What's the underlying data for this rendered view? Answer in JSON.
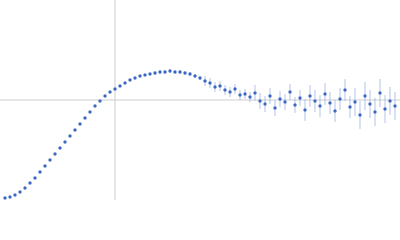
{
  "chart_data": {
    "type": "scatter",
    "color": "#3a66c4",
    "error_color": "#9fb5e2",
    "xlim": [
      0,
      400
    ],
    "ylim": [
      0,
      200
    ],
    "crosshair": {
      "x": 115,
      "y": 100
    },
    "x": [
      5,
      10,
      15,
      20,
      25,
      30,
      35,
      40,
      45,
      50,
      55,
      60,
      65,
      70,
      75,
      80,
      85,
      90,
      95,
      100,
      105,
      110,
      115,
      120,
      125,
      130,
      135,
      140,
      145,
      150,
      155,
      160,
      165,
      170,
      175,
      180,
      185,
      190,
      195,
      200,
      205,
      210,
      215,
      220,
      225,
      230,
      235,
      240,
      245,
      250,
      255,
      260,
      265,
      270,
      275,
      280,
      285,
      290,
      295,
      300,
      305,
      310,
      315,
      320,
      325,
      330,
      335,
      340,
      345,
      350,
      355,
      360,
      365,
      370,
      375,
      380,
      385,
      390,
      395
    ],
    "values": [
      2,
      3,
      5,
      8,
      12,
      17,
      22,
      28,
      34,
      40,
      46,
      52,
      58,
      64,
      70,
      76,
      82,
      88,
      94,
      99,
      104,
      108,
      111,
      114,
      117,
      120,
      122,
      124,
      125,
      126,
      127,
      128,
      128,
      129,
      128,
      128,
      127,
      126,
      124,
      122,
      119,
      117,
      113,
      114,
      110,
      108,
      111,
      105,
      106,
      103,
      107,
      99,
      96,
      104,
      92,
      101,
      98,
      108,
      95,
      102,
      90,
      104,
      99,
      94,
      106,
      97,
      89,
      101,
      110,
      93,
      98,
      85,
      104,
      96,
      88,
      107,
      91,
      99,
      94
    ],
    "errors": [
      1,
      1,
      1,
      1,
      1,
      1,
      1,
      1,
      1,
      1,
      1,
      1,
      1,
      1,
      1,
      1,
      1,
      1,
      1,
      1,
      1,
      1,
      1,
      1,
      1,
      1,
      1,
      1,
      1,
      1,
      2,
      2,
      2,
      2,
      2,
      2,
      2,
      2,
      2,
      2,
      5,
      5,
      5,
      5,
      5,
      5,
      5,
      5,
      5,
      5,
      8,
      8,
      8,
      8,
      8,
      8,
      8,
      8,
      8,
      8,
      11,
      11,
      11,
      11,
      11,
      11,
      11,
      11,
      11,
      11,
      14,
      14,
      14,
      14,
      14,
      14,
      14,
      14,
      14
    ]
  }
}
